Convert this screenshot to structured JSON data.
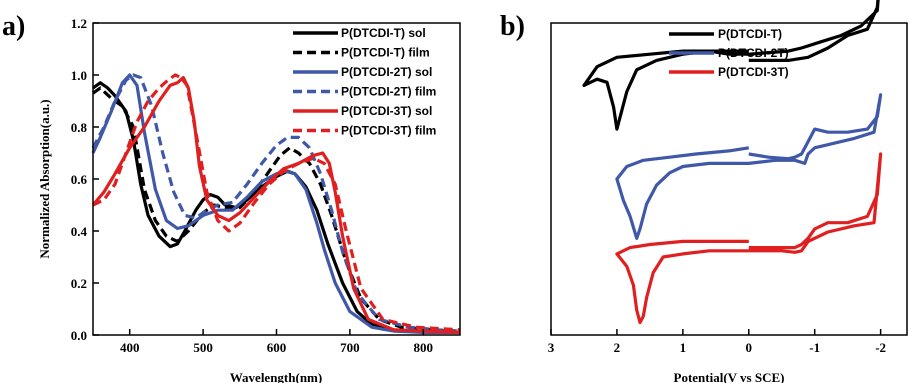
{
  "chart_data": [
    {
      "type": "line",
      "panel": "a)",
      "xlabel": "Wavelength(nm)",
      "ylabel": "Normalized Absorption(a.u.)",
      "xlim": [
        350,
        850
      ],
      "ylim": [
        0.0,
        1.2
      ],
      "xticks": [
        400,
        500,
        600,
        700,
        800
      ],
      "yticks": [
        "0.0",
        "0.2",
        "0.4",
        "0.6",
        "0.8",
        "1.0",
        "1.2"
      ],
      "legend_position": "top-right",
      "series": [
        {
          "name": "P(DTCDI-T) sol",
          "color": "#000000",
          "dash": "solid",
          "x": [
            350,
            360,
            370,
            380,
            395,
            405,
            415,
            425,
            440,
            455,
            465,
            475,
            490,
            500,
            510,
            520,
            530,
            545,
            560,
            580,
            600,
            615,
            625,
            640,
            655,
            670,
            690,
            710,
            730,
            760,
            800,
            850
          ],
          "y": [
            0.95,
            0.97,
            0.95,
            0.92,
            0.86,
            0.75,
            0.58,
            0.46,
            0.38,
            0.34,
            0.35,
            0.4,
            0.48,
            0.52,
            0.54,
            0.53,
            0.5,
            0.49,
            0.52,
            0.57,
            0.61,
            0.63,
            0.62,
            0.57,
            0.48,
            0.35,
            0.2,
            0.09,
            0.04,
            0.02,
            0.015,
            0.01
          ]
        },
        {
          "name": "P(DTCDI-T) film",
          "color": "#000000",
          "dash": "dashed",
          "x": [
            350,
            360,
            375,
            390,
            405,
            420,
            435,
            450,
            465,
            480,
            500,
            515,
            530,
            550,
            570,
            590,
            605,
            618,
            630,
            645,
            660,
            675,
            695,
            715,
            740,
            770,
            810,
            850
          ],
          "y": [
            0.93,
            0.95,
            0.91,
            0.88,
            0.8,
            0.56,
            0.44,
            0.38,
            0.36,
            0.4,
            0.47,
            0.5,
            0.49,
            0.49,
            0.55,
            0.63,
            0.69,
            0.72,
            0.7,
            0.66,
            0.58,
            0.46,
            0.28,
            0.14,
            0.06,
            0.03,
            0.02,
            0.01
          ]
        },
        {
          "name": "P(DTCDI-2T) sol",
          "color": "#4058a8",
          "dash": "solid",
          "x": [
            350,
            360,
            375,
            390,
            400,
            410,
            420,
            435,
            450,
            465,
            480,
            500,
            520,
            540,
            560,
            580,
            600,
            612,
            625,
            640,
            655,
            665,
            680,
            700,
            730,
            760,
            800,
            850
          ],
          "y": [
            0.7,
            0.76,
            0.86,
            0.97,
            1.0,
            0.96,
            0.78,
            0.56,
            0.44,
            0.41,
            0.42,
            0.46,
            0.48,
            0.48,
            0.53,
            0.59,
            0.62,
            0.63,
            0.62,
            0.56,
            0.43,
            0.33,
            0.2,
            0.09,
            0.03,
            0.015,
            0.01,
            0.01
          ]
        },
        {
          "name": "P(DTCDI-2T) film",
          "color": "#4058a8",
          "dash": "dashed",
          "x": [
            350,
            365,
            380,
            395,
            405,
            415,
            430,
            445,
            460,
            475,
            490,
            505,
            520,
            540,
            560,
            580,
            600,
            615,
            630,
            645,
            660,
            675,
            690,
            710,
            740,
            780,
            820,
            850
          ],
          "y": [
            0.72,
            0.8,
            0.9,
            0.98,
            1.0,
            0.99,
            0.88,
            0.7,
            0.55,
            0.46,
            0.45,
            0.48,
            0.5,
            0.51,
            0.58,
            0.66,
            0.73,
            0.76,
            0.76,
            0.72,
            0.62,
            0.48,
            0.32,
            0.16,
            0.06,
            0.03,
            0.02,
            0.015
          ]
        },
        {
          "name": "P(DTCDI-3T) sol",
          "color": "#e02020",
          "dash": "solid",
          "x": [
            350,
            365,
            380,
            400,
            420,
            440,
            455,
            465,
            473,
            480,
            488,
            495,
            505,
            520,
            535,
            550,
            570,
            590,
            610,
            630,
            650,
            663,
            672,
            680,
            690,
            705,
            725,
            760,
            800,
            850
          ],
          "y": [
            0.5,
            0.55,
            0.62,
            0.72,
            0.8,
            0.9,
            0.96,
            0.97,
            0.99,
            0.95,
            0.82,
            0.65,
            0.52,
            0.46,
            0.44,
            0.47,
            0.53,
            0.59,
            0.64,
            0.66,
            0.69,
            0.7,
            0.66,
            0.55,
            0.38,
            0.18,
            0.06,
            0.02,
            0.015,
            0.01
          ]
        },
        {
          "name": "P(DTCDI-3T) film",
          "color": "#e02020",
          "dash": "dashed",
          "x": [
            350,
            365,
            380,
            395,
            410,
            425,
            440,
            452,
            462,
            470,
            478,
            490,
            505,
            520,
            535,
            550,
            570,
            590,
            610,
            630,
            650,
            665,
            680,
            695,
            715,
            745,
            790,
            850
          ],
          "y": [
            0.5,
            0.52,
            0.58,
            0.7,
            0.82,
            0.9,
            0.95,
            0.98,
            1.0,
            0.99,
            0.96,
            0.78,
            0.55,
            0.44,
            0.4,
            0.43,
            0.51,
            0.58,
            0.63,
            0.66,
            0.68,
            0.66,
            0.58,
            0.4,
            0.18,
            0.06,
            0.03,
            0.02
          ]
        }
      ]
    },
    {
      "type": "line",
      "panel": "b)",
      "xlabel": "Potential(V vs SCE)",
      "ylabel": "",
      "xlim": [
        3,
        -2.4
      ],
      "xticks": [
        "3",
        "2",
        "1",
        "0",
        "-1",
        "-2"
      ],
      "xtick_values": [
        3,
        2,
        1,
        0,
        -1,
        -2
      ],
      "y_axis_labels": "none",
      "legend_position": "top-center",
      "series": [
        {
          "name": "P(DTCDI-T)",
          "color": "#000000",
          "x": [
            0,
            -0.3,
            -0.6,
            -0.9,
            -1.2,
            -1.5,
            -1.8,
            -1.95,
            -2.0,
            -1.95,
            -1.7,
            -1.4,
            -1.1,
            -0.8,
            -0.6,
            -0.3,
            0,
            0.3,
            0.6,
            1.0,
            1.4,
            1.7,
            1.85,
            1.95,
            2.0,
            2.05,
            2.15,
            2.3,
            2.5,
            2.3,
            2.0,
            1.5,
            1.0,
            0.5,
            0
          ],
          "y": [
            0.88,
            0.88,
            0.88,
            0.89,
            0.92,
            0.96,
            0.98,
            1.05,
            1.18,
            1.04,
            0.99,
            0.96,
            0.94,
            0.92,
            0.91,
            0.905,
            0.9,
            0.9,
            0.91,
            0.9,
            0.88,
            0.85,
            0.78,
            0.7,
            0.66,
            0.73,
            0.81,
            0.82,
            0.8,
            0.86,
            0.89,
            0.9,
            0.91,
            0.91,
            0.91
          ]
        },
        {
          "name": "P(DTCDI-2T)",
          "color": "#4058a8",
          "x": [
            0,
            -0.3,
            -0.6,
            -0.7,
            -0.8,
            -0.9,
            -1.0,
            -1.2,
            -1.5,
            -1.8,
            -1.95,
            -2.0,
            -1.9,
            -1.6,
            -1.2,
            -1.0,
            -0.9,
            -0.85,
            -0.7,
            -0.4,
            0,
            0.3,
            0.6,
            1.0,
            1.2,
            1.4,
            1.55,
            1.65,
            1.7,
            1.8,
            1.9,
            2.0,
            1.85,
            1.6,
            1.2,
            0.8,
            0.3,
            0
          ],
          "y": [
            0.58,
            0.57,
            0.565,
            0.57,
            0.58,
            0.62,
            0.66,
            0.65,
            0.65,
            0.66,
            0.7,
            0.77,
            0.65,
            0.63,
            0.61,
            0.6,
            0.58,
            0.55,
            0.56,
            0.56,
            0.55,
            0.55,
            0.55,
            0.54,
            0.52,
            0.48,
            0.42,
            0.34,
            0.31,
            0.38,
            0.43,
            0.5,
            0.54,
            0.56,
            0.57,
            0.58,
            0.59,
            0.6
          ]
        },
        {
          "name": "P(DTCDI-3T)",
          "color": "#e02020",
          "x": [
            0,
            -0.4,
            -0.7,
            -0.8,
            -0.9,
            -1.0,
            -1.2,
            -1.5,
            -1.8,
            -1.95,
            -2.0,
            -1.9,
            -1.6,
            -1.2,
            -0.9,
            -0.8,
            -0.7,
            -0.5,
            -0.2,
            0,
            0.3,
            0.6,
            1.0,
            1.3,
            1.45,
            1.55,
            1.6,
            1.65,
            1.7,
            1.75,
            1.85,
            2.0,
            1.8,
            1.5,
            1.0,
            0.5,
            0.2,
            0
          ],
          "y": [
            0.28,
            0.28,
            0.28,
            0.29,
            0.31,
            0.34,
            0.36,
            0.36,
            0.38,
            0.45,
            0.58,
            0.36,
            0.35,
            0.33,
            0.3,
            0.27,
            0.265,
            0.27,
            0.27,
            0.27,
            0.27,
            0.27,
            0.26,
            0.25,
            0.2,
            0.12,
            0.06,
            0.04,
            0.08,
            0.16,
            0.22,
            0.26,
            0.28,
            0.29,
            0.3,
            0.3,
            0.3,
            0.3
          ]
        }
      ]
    }
  ]
}
